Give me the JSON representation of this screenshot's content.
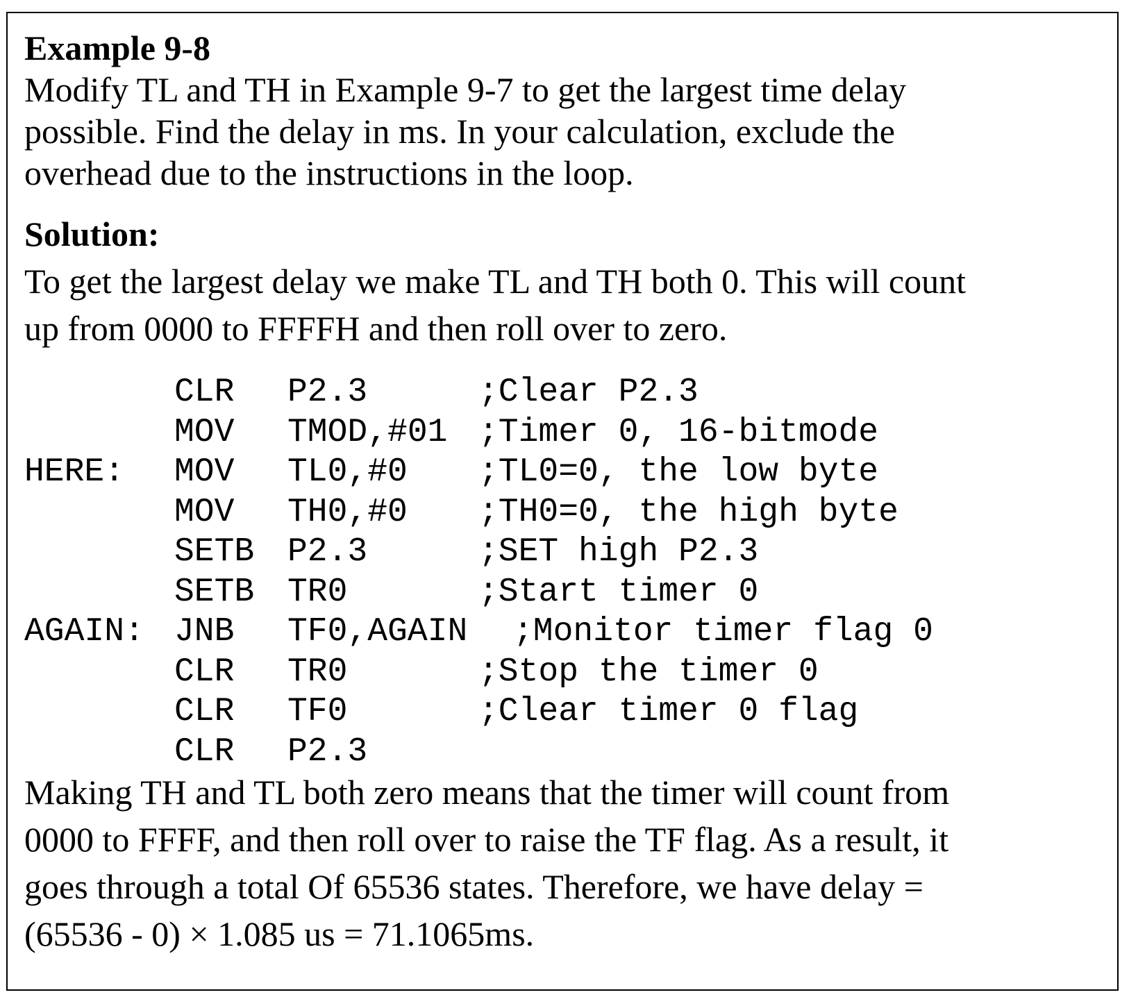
{
  "example": {
    "title": "Example 9-8",
    "question_lines": [
      "Modify TL and TH in Example 9-7 to get the largest time delay",
      "possible. Find the delay in ms. In your calculation, exclude the",
      "overhead due to the instructions in the loop."
    ]
  },
  "solution": {
    "heading": "Solution:",
    "intro_lines": [
      "To get the largest delay we make TL and TH both 0. This will count",
      "up from 0000 to FFFFH and then roll over to zero."
    ],
    "code": [
      {
        "label": "",
        "op": "CLR",
        "arg": "P2.3",
        "comment": ";Clear P2.3"
      },
      {
        "label": "",
        "op": "MOV",
        "arg": "TMOD,#01",
        "comment": ";Timer 0, 16-bitmode"
      },
      {
        "label": "HERE:",
        "op": "MOV",
        "arg": "TL0,#0",
        "comment": ";TL0=0, the low byte"
      },
      {
        "label": "",
        "op": "MOV",
        "arg": "TH0,#0",
        "comment": ";TH0=0, the high byte"
      },
      {
        "label": "",
        "op": "SETB",
        "arg": "P2.3",
        "comment": ";SET high P2.3"
      },
      {
        "label": "",
        "op": "SETB",
        "arg": "TR0",
        "comment": ";Start timer 0"
      },
      {
        "label": "AGAIN:",
        "op": "JNB",
        "arg": "TF0,AGAIN",
        "comment": ";Monitor timer flag 0"
      },
      {
        "label": "",
        "op": "CLR",
        "arg": "TR0",
        "comment": ";Stop the timer 0"
      },
      {
        "label": "",
        "op": "CLR",
        "arg": "TF0",
        "comment": ";Clear timer 0 flag"
      },
      {
        "label": "",
        "op": "CLR",
        "arg": "P2.3",
        "comment": ""
      }
    ],
    "explanation_lines": [
      "Making TH and TL both zero means that the timer will count from",
      "0000 to FFFF, and then roll over to raise the TF flag. As a result, it",
      "goes through a total Of 65536 states. Therefore, we have delay =",
      "(65536 - 0) × 1.085 us = 71.1065ms."
    ]
  }
}
